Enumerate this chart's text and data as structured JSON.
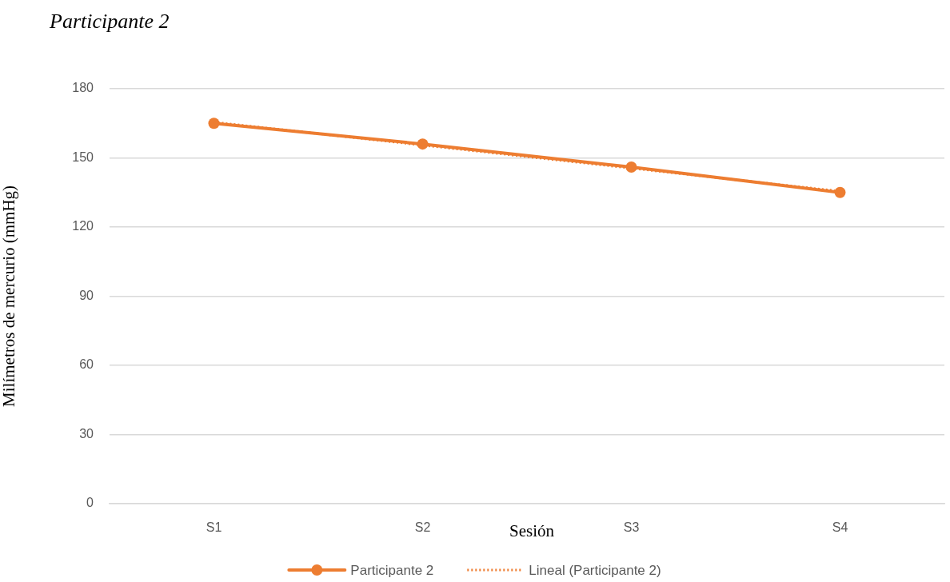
{
  "chart_data": {
    "type": "line",
    "title": "Participante 2",
    "xlabel": "Sesión",
    "ylabel": "Milímetros de mercurio (mmHg)",
    "categories": [
      "S1",
      "S2",
      "S3",
      "S4"
    ],
    "series": [
      {
        "name": "Participante 2",
        "color": "#ed7d31",
        "values": [
          165,
          156,
          146,
          135
        ]
      },
      {
        "name": "Lineal (Participante 2)",
        "color": "#ed7d31",
        "values": [
          165.5,
          155.5,
          145.5,
          135.5
        ],
        "marker": "none",
        "line_style": "dotted"
      }
    ],
    "ylim": [
      0,
      180
    ],
    "yticks": [
      0,
      30,
      60,
      90,
      120,
      150,
      180
    ],
    "grid": "y",
    "legend": "bottom",
    "marker": "circle",
    "line_style": "solid"
  }
}
